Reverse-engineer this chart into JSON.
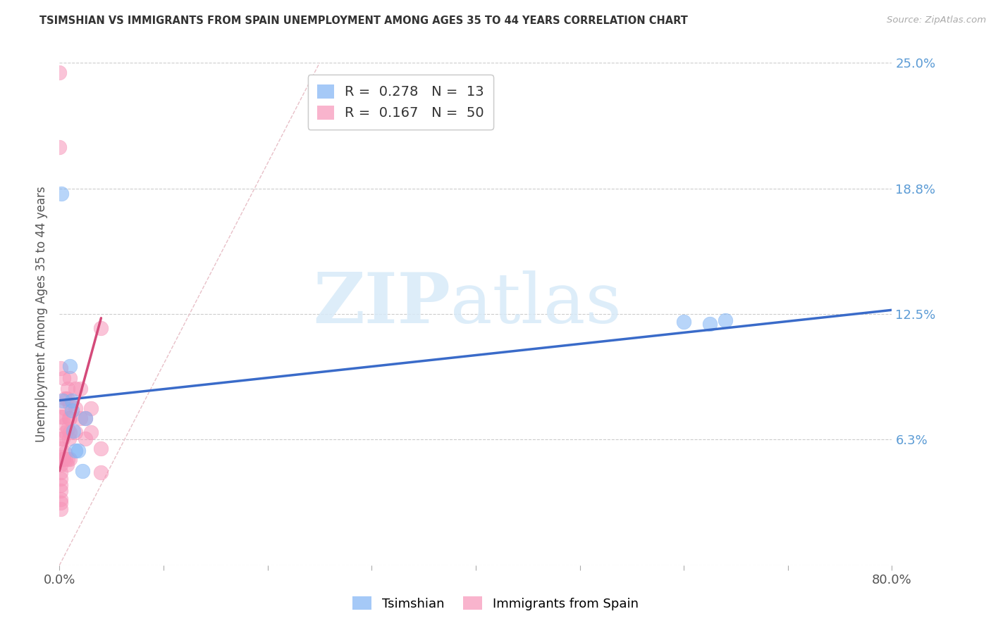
{
  "title": "TSIMSHIAN VS IMMIGRANTS FROM SPAIN UNEMPLOYMENT AMONG AGES 35 TO 44 YEARS CORRELATION CHART",
  "source": "Source: ZipAtlas.com",
  "ylabel": "Unemployment Among Ages 35 to 44 years",
  "xlim": [
    0.0,
    0.8
  ],
  "ylim": [
    0.0,
    0.25
  ],
  "ytick_positions": [
    0.0,
    0.0625,
    0.125,
    0.1875,
    0.25
  ],
  "ytick_labels": [
    "",
    "6.3%",
    "12.5%",
    "18.8%",
    "25.0%"
  ],
  "legend1_r": "0.278",
  "legend1_n": "13",
  "legend2_r": "0.167",
  "legend2_n": "50",
  "legend1_label": "Tsimshian",
  "legend2_label": "Immigrants from Spain",
  "blue_scatter_color": "#7fb3f5",
  "pink_scatter_color": "#f794b8",
  "blue_line_color": "#3a6bc9",
  "pink_line_color": "#d44a7a",
  "diag_line_color": "#e8c0c8",
  "right_tick_color": "#5b9bd5",
  "tsimshian_x": [
    0.002,
    0.003,
    0.01,
    0.012,
    0.012,
    0.013,
    0.015,
    0.018,
    0.022,
    0.025,
    0.6,
    0.625,
    0.64
  ],
  "tsimshian_y": [
    0.185,
    0.082,
    0.099,
    0.082,
    0.077,
    0.067,
    0.057,
    0.057,
    0.047,
    0.073,
    0.121,
    0.12,
    0.122
  ],
  "spain_x": [
    0.0,
    0.0,
    0.001,
    0.001,
    0.001,
    0.001,
    0.001,
    0.001,
    0.001,
    0.001,
    0.001,
    0.001,
    0.001,
    0.001,
    0.001,
    0.003,
    0.003,
    0.003,
    0.004,
    0.004,
    0.005,
    0.005,
    0.005,
    0.005,
    0.006,
    0.006,
    0.007,
    0.007,
    0.008,
    0.008,
    0.008,
    0.009,
    0.009,
    0.01,
    0.01,
    0.01,
    0.01,
    0.01,
    0.015,
    0.015,
    0.015,
    0.02,
    0.02,
    0.025,
    0.025,
    0.03,
    0.03,
    0.04,
    0.04,
    0.04
  ],
  "spain_y": [
    0.245,
    0.208,
    0.098,
    0.074,
    0.063,
    0.058,
    0.054,
    0.05,
    0.046,
    0.043,
    0.04,
    0.037,
    0.033,
    0.031,
    0.028,
    0.074,
    0.063,
    0.053,
    0.093,
    0.053,
    0.083,
    0.078,
    0.07,
    0.056,
    0.066,
    0.053,
    0.083,
    0.05,
    0.088,
    0.068,
    0.053,
    0.073,
    0.063,
    0.093,
    0.08,
    0.073,
    0.066,
    0.053,
    0.088,
    0.078,
    0.066,
    0.088,
    0.073,
    0.073,
    0.063,
    0.078,
    0.066,
    0.118,
    0.058,
    0.046
  ],
  "ts_line_x": [
    0.0,
    0.8
  ],
  "ts_line_y": [
    0.082,
    0.127
  ],
  "sp_line_x": [
    0.0,
    0.04
  ],
  "sp_line_y": [
    0.047,
    0.123
  ],
  "diag_line_x": [
    0.0,
    0.25
  ],
  "diag_line_y": [
    0.0,
    0.25
  ],
  "watermark_zip": "ZIP",
  "watermark_atlas": "atlas",
  "background_color": "#ffffff"
}
